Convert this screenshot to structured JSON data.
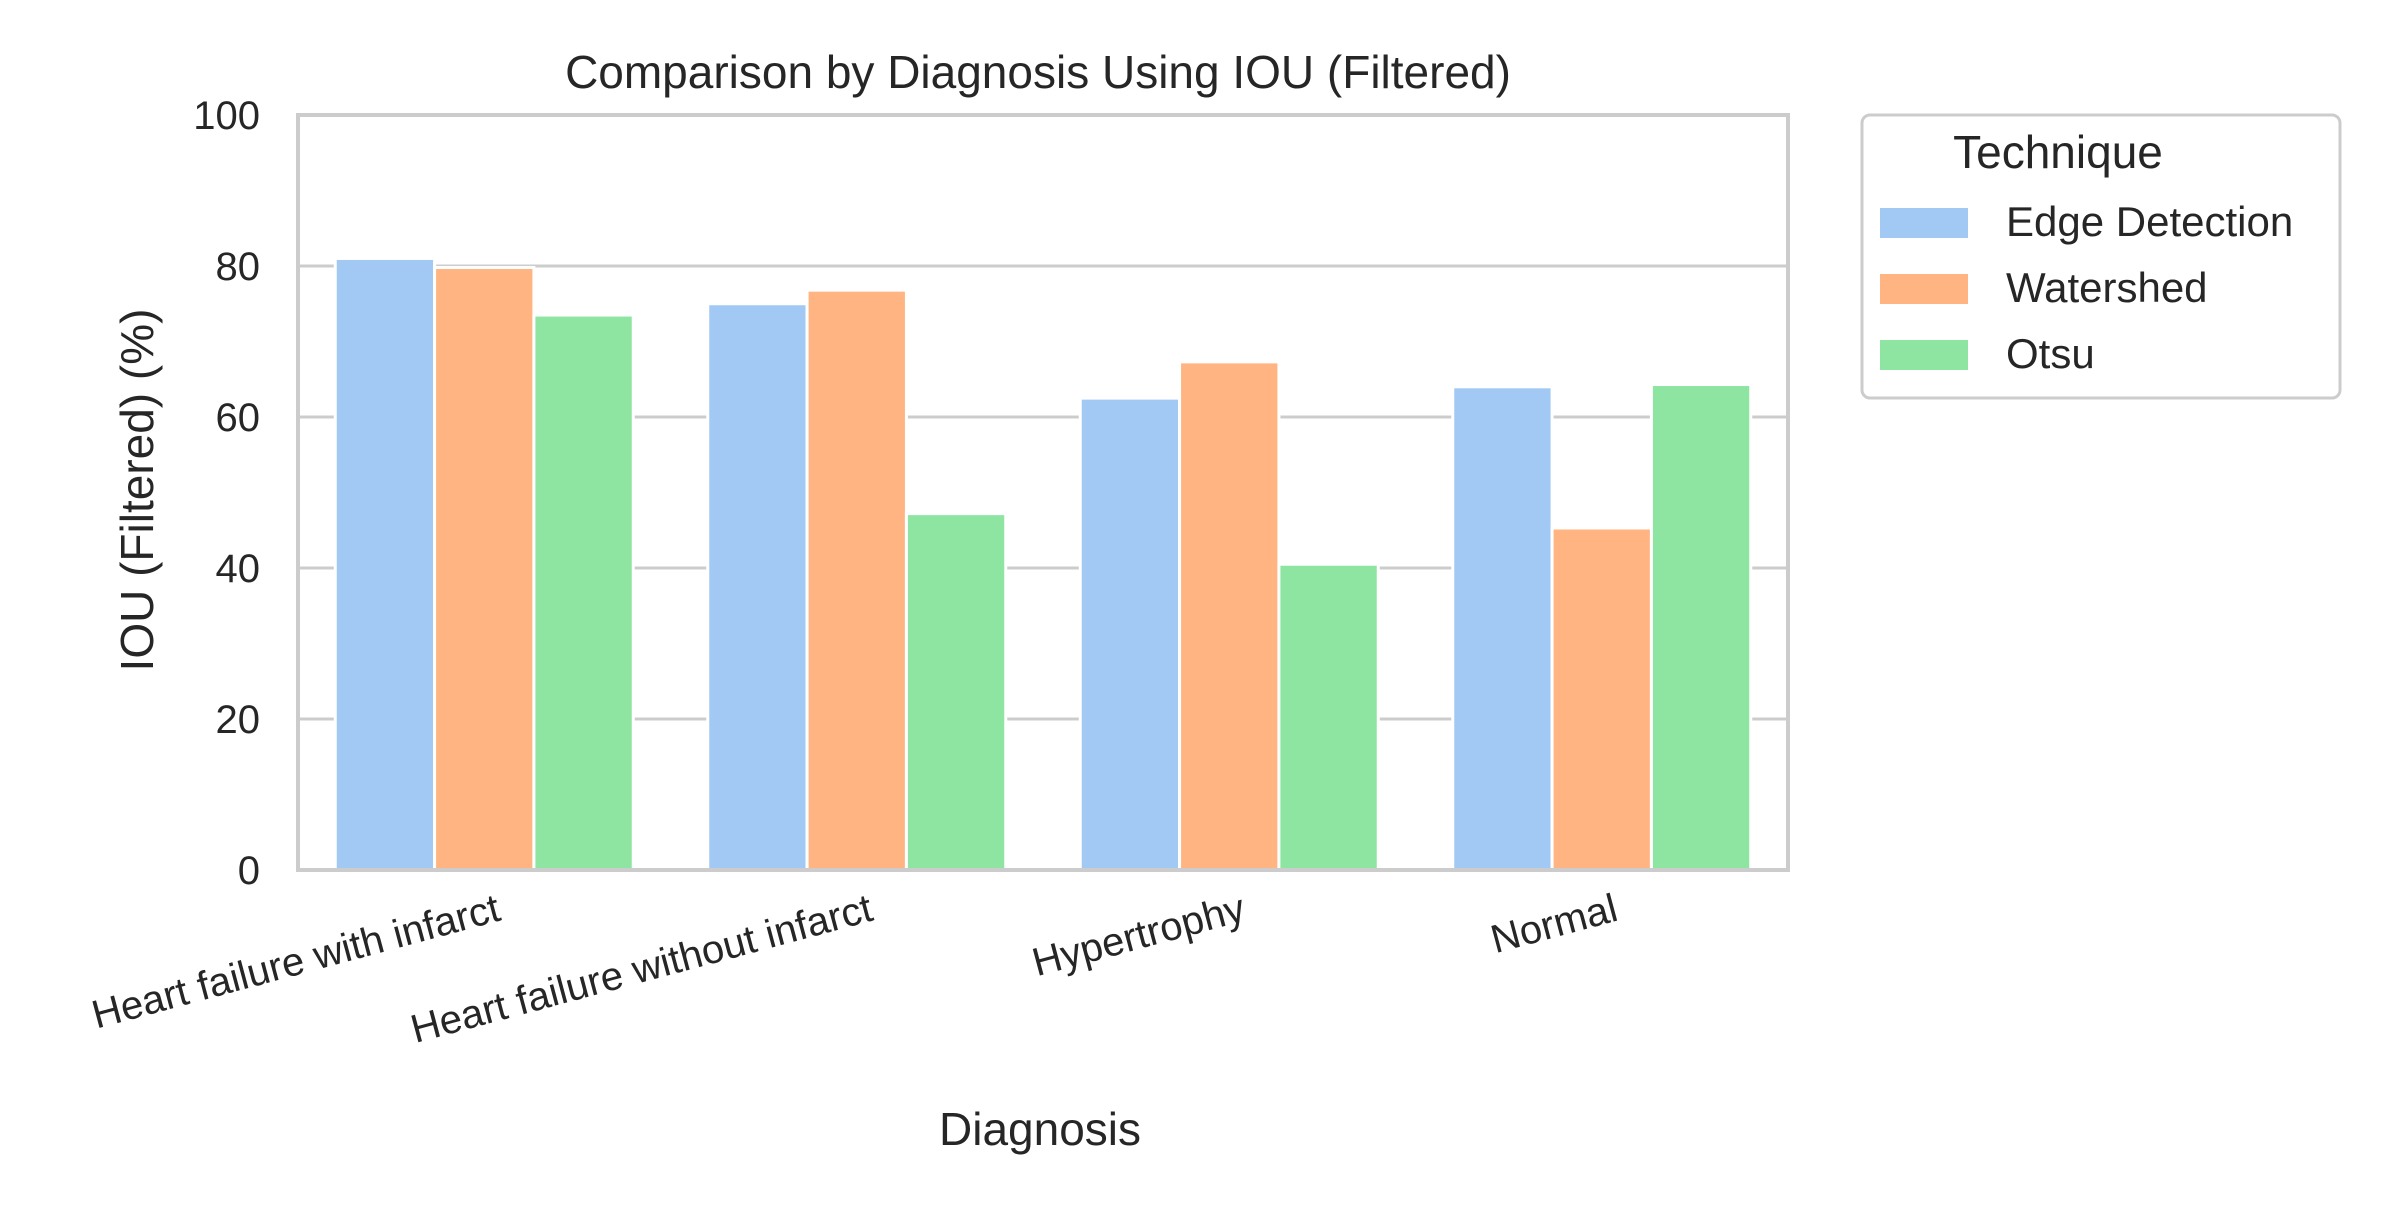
{
  "chart_data": {
    "type": "bar",
    "title": "Comparison by Diagnosis Using IOU (Filtered)",
    "xlabel": "Diagnosis",
    "ylabel": "IOU (Filtered) (%)",
    "ylim": [
      0,
      100
    ],
    "yticks": [
      "0",
      "20",
      "40",
      "60",
      "80",
      "100"
    ],
    "grid": true,
    "legend": {
      "title": "Technique",
      "placement": "outside-top-right"
    },
    "categories": [
      "Heart failure with infarct",
      "Heart failure without infarct",
      "Hypertrophy",
      "Normal"
    ],
    "series": [
      {
        "name": "Edge Detection",
        "color": "#a1c9f4",
        "values": [
          81.0,
          75.0,
          62.5,
          64.0
        ]
      },
      {
        "name": "Watershed",
        "color": "#ffb482",
        "values": [
          79.8,
          76.8,
          67.3,
          45.3
        ]
      },
      {
        "name": "Otsu",
        "color": "#8de5a1",
        "values": [
          73.5,
          47.2,
          40.5,
          64.3
        ]
      }
    ],
    "colors": {
      "grid": "#cccccc",
      "spine": "#cccccc",
      "text": "#262626"
    }
  }
}
